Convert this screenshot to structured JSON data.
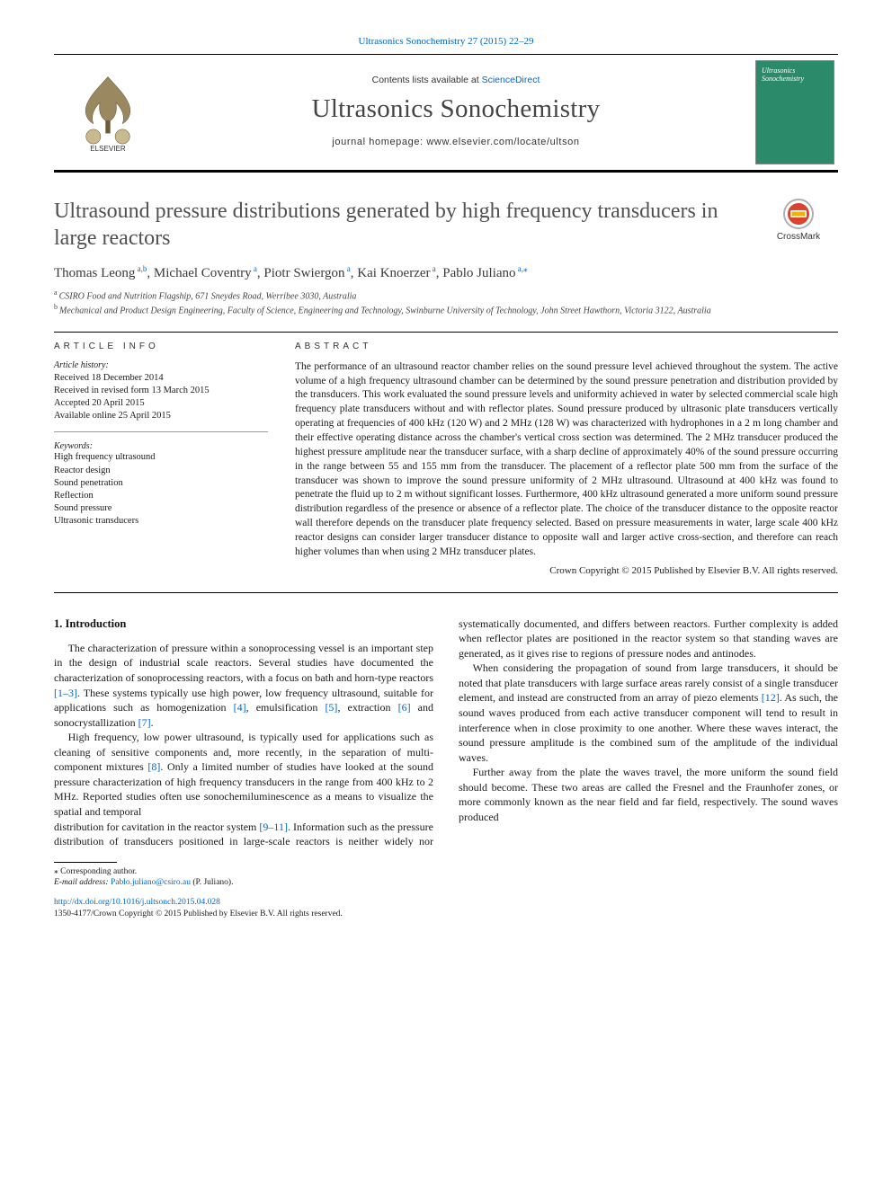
{
  "top_citation": "Ultrasonics Sonochemistry 27 (2015) 22–29",
  "masthead": {
    "contents_prefix": "Contents lists available at ",
    "contents_link": "ScienceDirect",
    "journal_name": "Ultrasonics Sonochemistry",
    "homepage_prefix": "journal homepage: ",
    "homepage_url": "www.elsevier.com/locate/ultson",
    "publisher_label": "ELSEVIER",
    "cover_title": "Ultrasonics Sonochemistry"
  },
  "crossmark_label": "CrossMark",
  "article": {
    "title": "Ultrasound pressure distributions generated by high frequency transducers in large reactors",
    "authors_html": "Thomas Leong|a,b|, Michael Coventry|a|, Piotr Swiergon|a|, Kai Knoerzer|a|, Pablo Juliano|a,*|",
    "affiliations": [
      {
        "sup": "a",
        "text": "CSIRO Food and Nutrition Flagship, 671 Sneydes Road, Werribee 3030, Australia"
      },
      {
        "sup": "b",
        "text": "Mechanical and Product Design Engineering, Faculty of Science, Engineering and Technology, Swinburne University of Technology, John Street Hawthorn, Victoria 3122, Australia"
      }
    ]
  },
  "article_info": {
    "heading": "article info",
    "history_label": "Article history:",
    "history": [
      "Received 18 December 2014",
      "Received in revised form 13 March 2015",
      "Accepted 20 April 2015",
      "Available online 25 April 2015"
    ],
    "keywords_label": "Keywords:",
    "keywords": [
      "High frequency ultrasound",
      "Reactor design",
      "Sound penetration",
      "Reflection",
      "Sound pressure",
      "Ultrasonic transducers"
    ]
  },
  "abstract": {
    "heading": "abstract",
    "text": "The performance of an ultrasound reactor chamber relies on the sound pressure level achieved throughout the system. The active volume of a high frequency ultrasound chamber can be determined by the sound pressure penetration and distribution provided by the transducers. This work evaluated the sound pressure levels and uniformity achieved in water by selected commercial scale high frequency plate transducers without and with reflector plates. Sound pressure produced by ultrasonic plate transducers vertically operating at frequencies of 400 kHz (120 W) and 2 MHz (128 W) was characterized with hydrophones in a 2 m long chamber and their effective operating distance across the chamber's vertical cross section was determined. The 2 MHz transducer produced the highest pressure amplitude near the transducer surface, with a sharp decline of approximately 40% of the sound pressure occurring in the range between 55 and 155 mm from the transducer. The placement of a reflector plate 500 mm from the surface of the transducer was shown to improve the sound pressure uniformity of 2 MHz ultrasound. Ultrasound at 400 kHz was found to penetrate the fluid up to 2 m without significant losses. Furthermore, 400 kHz ultrasound generated a more uniform sound pressure distribution regardless of the presence or absence of a reflector plate. The choice of the transducer distance to the opposite reactor wall therefore depends on the transducer plate frequency selected. Based on pressure measurements in water, large scale 400 kHz reactor designs can consider larger transducer distance to opposite wall and larger active cross-section, and therefore can reach higher volumes than when using 2 MHz transducer plates.",
    "copyright": "Crown Copyright © 2015 Published by Elsevier B.V. All rights reserved."
  },
  "body": {
    "heading1": "1. Introduction",
    "p1a": "The characterization of pressure within a sonoprocessing vessel is an important step in the design of industrial scale reactors. Several studies have documented the characterization of sonoprocessing reactors, with a focus on bath and horn-type reactors ",
    "c1": "[1–3]",
    "p1b": ". These systems typically use high power, low frequency ultrasound, suitable for applications such as homogenization ",
    "c2": "[4]",
    "p1c": ", emulsification ",
    "c3": "[5]",
    "p1d": ", extraction ",
    "c4": "[6]",
    "p1e": " and sonocrystallization ",
    "c5": "[7]",
    "p1f": ".",
    "p2a": "High frequency, low power ultrasound, is typically used for applications such as cleaning of sensitive components and, more recently, in the separation of multi-component mixtures ",
    "c6": "[8]",
    "p2b": ". Only a limited number of studies have looked at the sound pressure characterization of high frequency transducers in the range from 400 kHz to 2 MHz. Reported studies often use sonochemiluminescence as a means to visualize the spatial and temporal",
    "p3a": "distribution for cavitation in the reactor system ",
    "c7": "[9–11]",
    "p3b": ". Information such as the pressure distribution of transducers positioned in large-scale reactors is neither widely nor systematically documented, and differs between reactors. Further complexity is added when reflector plates are positioned in the reactor system so that standing waves are generated, as it gives rise to regions of pressure nodes and antinodes.",
    "p4a": "When considering the propagation of sound from large transducers, it should be noted that plate transducers with large surface areas rarely consist of a single transducer element, and instead are constructed from an array of piezo elements ",
    "c8": "[12]",
    "p4b": ". As such, the sound waves produced from each active transducer component will tend to result in interference when in close proximity to one another. Where these waves interact, the sound pressure amplitude is the combined sum of the amplitude of the individual waves.",
    "p5": "Further away from the plate the waves travel, the more uniform the sound field should become. These two areas are called the Fresnel and the Fraunhofer zones, or more commonly known as the near field and far field, respectively. The sound waves produced"
  },
  "footnotes": {
    "corr_label": "⁎ Corresponding author.",
    "email_label": "E-mail address:",
    "email": "Pablo.juliano@csiro.au",
    "email_person": "(P. Juliano)."
  },
  "doi": {
    "url": "http://dx.doi.org/10.1016/j.ultsonch.2015.04.028",
    "issn_line": "1350-4177/Crown Copyright © 2015 Published by Elsevier B.V. All rights reserved."
  },
  "colors": {
    "link": "#0066cc",
    "cover_bg": "#2a8a6a",
    "rule": "#000000",
    "heading_gray": "#505050"
  }
}
